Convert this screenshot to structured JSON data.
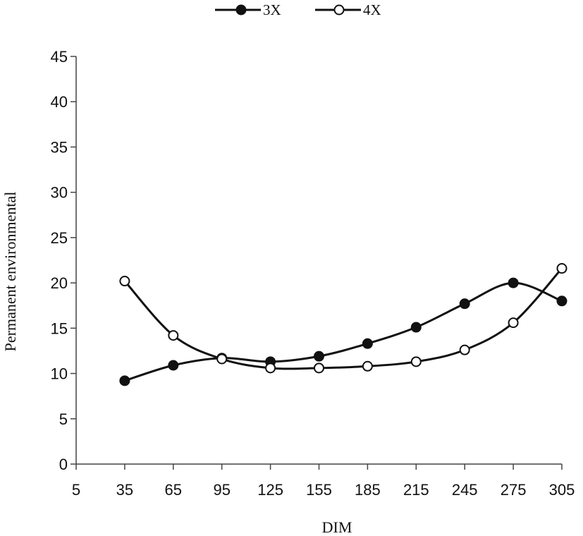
{
  "chart_data": {
    "type": "line",
    "xlabel": "DIM",
    "ylabel": "Permanent environmental",
    "x_ticks": [
      5,
      35,
      65,
      95,
      125,
      155,
      185,
      215,
      245,
      275,
      305
    ],
    "y_ticks": [
      0,
      5,
      10,
      15,
      20,
      25,
      30,
      35,
      40,
      45
    ],
    "xlim": [
      5,
      305
    ],
    "ylim": [
      0,
      45
    ],
    "grid": false,
    "legend_position": "top-center",
    "x": [
      35,
      65,
      95,
      125,
      155,
      185,
      215,
      245,
      275,
      305
    ],
    "series": [
      {
        "name": "3X",
        "marker": "filled-circle",
        "color": "#111111",
        "values": [
          9.2,
          10.9,
          11.7,
          11.3,
          11.9,
          13.3,
          15.1,
          17.7,
          20.0,
          18.0
        ]
      },
      {
        "name": "4X",
        "marker": "open-circle",
        "color": "#111111",
        "values": [
          20.2,
          14.2,
          11.6,
          10.6,
          10.6,
          10.8,
          11.3,
          12.6,
          15.6,
          21.6
        ]
      }
    ]
  }
}
